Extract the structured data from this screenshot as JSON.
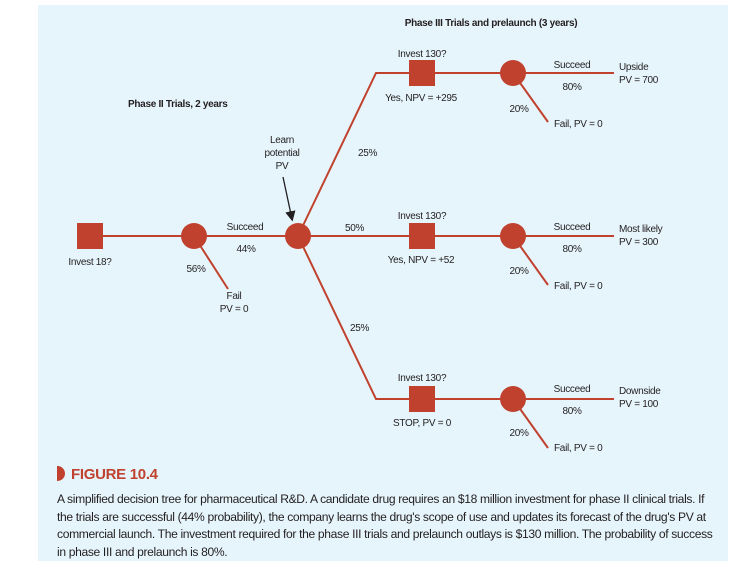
{
  "headings": {
    "phase3": "Phase III Trials and prelaunch (3 years)",
    "phase2": "Phase II Trials, 2 years"
  },
  "colors": {
    "node": "#c0422e",
    "background": "#e6f5fc",
    "figure_label": "#c0422e"
  },
  "phase2": {
    "decision": "Invest 18?",
    "succeed": "Succeed",
    "succeed_prob": "44%",
    "fail_prob": "56%",
    "fail_line1": "Fail",
    "fail_line2": "PV = 0",
    "learn": [
      "Learn",
      "potential",
      "PV"
    ]
  },
  "scenarios": [
    {
      "prob": "25%",
      "decision": "Invest 130?",
      "outcome": "Yes, NPV = +295",
      "succeed": "Succeed",
      "succeed_prob": "80%",
      "fail_prob": "20%",
      "fail": "Fail, PV = 0",
      "result_label": "Upside",
      "result_pv": "PV = 700"
    },
    {
      "prob": "50%",
      "decision": "Invest 130?",
      "outcome": "Yes, NPV = +52",
      "succeed": "Succeed",
      "succeed_prob": "80%",
      "fail_prob": "20%",
      "fail": "Fail, PV = 0",
      "result_label": "Most likely",
      "result_pv": "PV = 300"
    },
    {
      "prob": "25%",
      "decision": "Invest 130?",
      "outcome": "STOP, PV = 0",
      "succeed": "Succeed",
      "succeed_prob": "80%",
      "fail_prob": "20%",
      "fail": "Fail, PV = 0",
      "result_label": "Downside",
      "result_pv": "PV = 100"
    }
  ],
  "figure": {
    "label": "FIGURE 10.4",
    "caption": "A simplified decision tree for pharmaceutical R&D. A candidate drug requires an $18 million investment for phase II clinical trials. If the trials are successful (44% probability), the company learns the drug's scope of use and updates its forecast of the drug's PV at commercial launch. The investment required for the phase III trials and prelaunch outlays is $130 million. The probability of success in phase III and prelaunch is 80%."
  }
}
